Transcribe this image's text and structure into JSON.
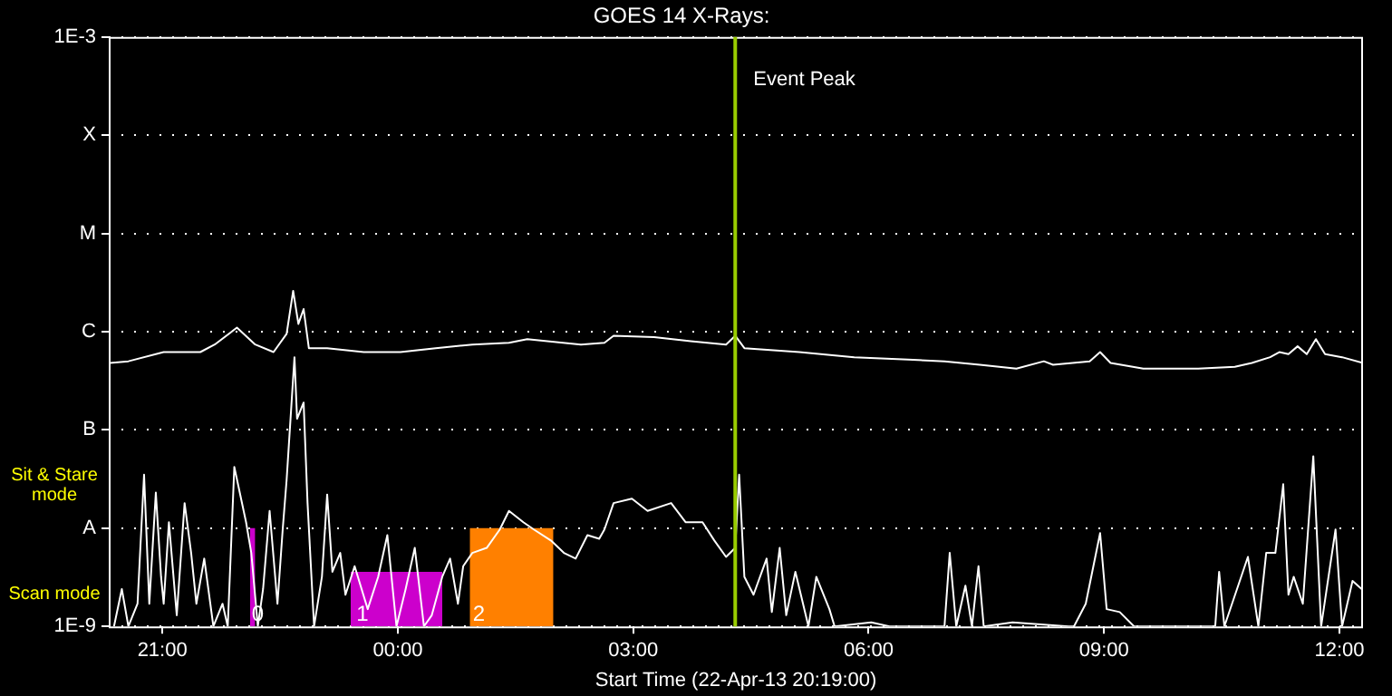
{
  "chart_data": {
    "type": "line",
    "title": "GOES 14 X-Rays:",
    "xlabel": "Start Time (22-Apr-13 20:19:00)",
    "xlim": [
      "--04-22T20:19",
      "--04-23T12:18"
    ],
    "xticks": [
      {
        "value": "--04-22T21:00",
        "label": "21:00"
      },
      {
        "value": "--04-23T00:00",
        "label": "00:00"
      },
      {
        "value": "--04-23T03:00",
        "label": "03:00"
      },
      {
        "value": "--04-23T06:00",
        "label": "06:00"
      },
      {
        "value": "--04-23T09:00",
        "label": "09:00"
      },
      {
        "value": "--04-23T12:00",
        "label": "12:00"
      }
    ],
    "log": "y",
    "ylim": [
      1e-09,
      0.001
    ],
    "yticks": [
      {
        "value": 1e-09,
        "label": "1E-9"
      },
      {
        "value": 1e-08,
        "label": "A"
      },
      {
        "value": 1e-07,
        "label": "B"
      },
      {
        "value": 1e-06,
        "label": "C"
      },
      {
        "value": 1e-05,
        "label": "M"
      },
      {
        "value": 0.0001,
        "label": "X"
      },
      {
        "value": 0.001,
        "label": "1E-3"
      }
    ],
    "grid": "y",
    "legend": false,
    "marker": "none",
    "line_style": "solid",
    "series": [
      {
        "color": "#ffffff",
        "x": [
          "--04-22T20:20",
          "--04-22T20:34",
          "--04-22T21:01",
          "--04-22T21:29",
          "--04-22T21:40",
          "--04-22T21:57",
          "--04-22T22:11",
          "--04-22T22:25",
          "--04-22T22:35",
          "--04-22T22:40",
          "--04-22T22:44",
          "--04-22T22:48",
          "--04-22T22:52",
          "--04-22T23:06",
          "--04-22T23:34",
          "--04-23T00:02",
          "--04-23T00:29",
          "--04-23T00:57",
          "--04-23T01:25",
          "--04-23T01:39",
          "--04-23T02:20",
          "--04-23T02:38",
          "--04-23T02:45",
          "--04-23T03:16",
          "--04-23T03:44",
          "--04-23T04:11",
          "--04-23T04:18",
          "--04-23T04:25",
          "--04-23T05:07",
          "--04-23T05:49",
          "--04-23T06:30",
          "--04-23T06:58",
          "--04-23T07:25",
          "--04-23T07:53",
          "--04-23T08:14",
          "--04-23T08:21",
          "--04-23T08:49",
          "--04-23T08:57",
          "--04-23T09:05",
          "--04-23T09:30",
          "--04-23T10:12",
          "--04-23T10:40",
          "--04-23T10:53",
          "--04-23T11:07",
          "--04-23T11:14",
          "--04-23T11:21",
          "--04-23T11:28",
          "--04-23T11:35",
          "--04-23T11:42",
          "--04-23T11:49",
          "--04-23T12:02",
          "--04-23T12:18"
        ],
        "values": [
          4.8e-07,
          5e-07,
          6.2e-07,
          6.2e-07,
          7.4e-07,
          1.1e-06,
          7.4e-07,
          6.2e-07,
          9.5e-07,
          2.6e-06,
          1.2e-06,
          1.7e-06,
          6.8e-07,
          6.8e-07,
          6.2e-07,
          6.2e-07,
          6.8e-07,
          7.4e-07,
          7.7e-07,
          8.4e-07,
          7.4e-07,
          7.7e-07,
          9.1e-07,
          8.8e-07,
          8e-07,
          7.4e-07,
          9.1e-07,
          6.8e-07,
          6.2e-07,
          5.5e-07,
          5.2e-07,
          5e-07,
          4.6e-07,
          4.2e-07,
          5e-07,
          4.6e-07,
          5e-07,
          6.2e-07,
          4.8e-07,
          4.2e-07,
          4.2e-07,
          4.4e-07,
          4.8e-07,
          5.5e-07,
          6.2e-07,
          5.9e-07,
          7.1e-07,
          5.9e-07,
          8.4e-07,
          5.9e-07,
          5.5e-07,
          4.8e-07
        ]
      },
      {
        "color": "#ffffff",
        "x": [
          "--04-22T20:23",
          "--04-22T20:29",
          "--04-22T20:34",
          "--04-22T20:41",
          "--04-22T20:46",
          "--04-22T20:50",
          "--04-22T20:55",
          "--04-22T20:59",
          "--04-22T21:01",
          "--04-22T21:05",
          "--04-22T21:11",
          "--04-22T21:17",
          "--04-22T21:22",
          "--04-22T21:26",
          "--04-22T21:32",
          "--04-22T21:39",
          "--04-22T21:46",
          "--04-22T21:50",
          "--04-22T21:55",
          "--04-22T22:04",
          "--04-22T22:08",
          "--04-22T22:13",
          "--04-22T22:17",
          "--04-22T22:22",
          "--04-22T22:28",
          "--04-22T22:32",
          "--04-22T22:35",
          "--04-22T22:41",
          "--04-22T22:43",
          "--04-22T22:48",
          "--04-22T22:51",
          "--04-22T22:56",
          "--04-22T23:02",
          "--04-22T23:06",
          "--04-22T23:10",
          "--04-22T23:16",
          "--04-22T23:20",
          "--04-22T23:27",
          "--04-22T23:37",
          "--04-22T23:45",
          "--04-22T23:52",
          "--04-22T23:59",
          "--04-23T00:06",
          "--04-23T00:13",
          "--04-23T00:20",
          "--04-23T00:26",
          "--04-23T00:34",
          "--04-23T00:40",
          "--04-23T00:46",
          "--04-23T00:50",
          "--04-23T00:57",
          "--04-23T01:08",
          "--04-23T01:18",
          "--04-23T01:25",
          "--04-23T01:36",
          "--04-23T01:44",
          "--04-23T01:57",
          "--04-23T02:07",
          "--04-23T02:16",
          "--04-23T02:25",
          "--04-23T02:34",
          "--04-23T02:38",
          "--04-23T02:45",
          "--04-23T02:59",
          "--04-23T03:11",
          "--04-23T03:29",
          "--04-23T03:40",
          "--04-23T03:53",
          "--04-23T04:02",
          "--04-23T04:11",
          "--04-23T04:18",
          "--04-23T04:21",
          "--04-23T04:25",
          "--04-23T04:32",
          "--04-23T04:42",
          "--04-23T04:46",
          "--04-23T04:52",
          "--04-23T04:57",
          "--04-23T05:04",
          "--04-23T05:14",
          "--04-23T05:20",
          "--04-23T05:30",
          "--04-23T05:34",
          "--04-23T06:02",
          "--04-23T06:16",
          "--04-23T06:58",
          "--04-23T07:02",
          "--04-23T07:07",
          "--04-23T07:14",
          "--04-23T07:19",
          "--04-23T07:24",
          "--04-23T07:28",
          "--04-23T07:50",
          "--04-23T08:33",
          "--04-23T08:37",
          "--04-23T08:46",
          "--04-23T08:57",
          "--04-23T09:02",
          "--04-23T09:12",
          "--04-23T09:23",
          "--04-23T10:25",
          "--04-23T10:28",
          "--04-23T10:32",
          "--04-23T10:50",
          "--04-23T10:58",
          "--04-23T11:04",
          "--04-23T11:11",
          "--04-23T11:17",
          "--04-23T11:21",
          "--04-23T11:25",
          "--04-23T11:32",
          "--04-23T11:40",
          "--04-23T11:46",
          "--04-23T11:57",
          "--04-23T12:02",
          "--04-23T12:10",
          "--04-23T12:17"
        ],
        "values": [
          1e-09,
          2.4e-09,
          1e-09,
          1.7e-09,
          3.5e-08,
          1.7e-09,
          2.3e-08,
          3.2e-09,
          1.7e-09,
          1.15e-08,
          1.3e-09,
          1.8e-08,
          5.6e-09,
          1.7e-09,
          4.9e-09,
          1e-09,
          1.7e-09,
          1e-09,
          4.2e-08,
          1.15e-08,
          5.6e-09,
          1e-09,
          2.4e-09,
          1.5e-08,
          1.7e-09,
          9.7e-09,
          3.1e-08,
          5.5e-07,
          1.3e-07,
          1.9e-07,
          1.8e-08,
          1e-09,
          3.2e-09,
          2.2e-08,
          3.6e-09,
          5.6e-09,
          2.1e-09,
          4.1e-09,
          1.5e-09,
          3.2e-09,
          8.5e-09,
          1e-09,
          2.4e-09,
          6.3e-09,
          1e-09,
          1.3e-09,
          3.2e-09,
          4.9e-09,
          1.7e-09,
          4.1e-09,
          5.6e-09,
          6.3e-09,
          9.7e-09,
          1.5e-08,
          1.15e-08,
          9.7e-09,
          7.5e-09,
          5.6e-09,
          4.9e-09,
          8.5e-09,
          7.8e-09,
          9.7e-09,
          1.8e-08,
          2e-08,
          1.5e-08,
          1.8e-08,
          1.15e-08,
          1.15e-08,
          7.5e-09,
          5.1e-09,
          6.3e-09,
          3.5e-08,
          3.2e-09,
          2.1e-09,
          4.9e-09,
          1.4e-09,
          6.3e-09,
          1.3e-09,
          3.6e-09,
          1e-09,
          3.2e-09,
          1.5e-09,
          1e-09,
          1.1e-09,
          1e-09,
          1e-09,
          5.6e-09,
          1e-09,
          2.6e-09,
          1e-09,
          4.1e-09,
          1e-09,
          1.1e-09,
          1e-09,
          1e-09,
          1.7e-09,
          8.9e-09,
          1.5e-09,
          1.4e-09,
          1e-09,
          1e-09,
          3.6e-09,
          1e-09,
          5.1e-09,
          1e-09,
          5.6e-09,
          5.6e-09,
          2.8e-08,
          2.1e-09,
          3.2e-09,
          1.7e-09,
          5.4e-08,
          1e-09,
          9.7e-09,
          1e-09,
          2.9e-09,
          2.4e-09
        ]
      },
      {
        "type": "area",
        "color": "#cc00cc",
        "x": [
          "--04-22T22:07",
          "--04-22T22:11"
        ],
        "values": [
          1e-08,
          1e-08
        ]
      },
      {
        "type": "area",
        "color": "#cc00cc",
        "x": [
          "--04-22T23:24",
          "--04-23T00:34"
        ],
        "values": [
          3.6e-09,
          3.6e-09
        ]
      },
      {
        "type": "area",
        "color": "#ff8000",
        "x": [
          "--04-23T00:55",
          "--04-23T01:59"
        ],
        "values": [
          1e-08,
          1e-08
        ]
      }
    ],
    "ref_lines": [
      {
        "axis": "x",
        "value": "--04-23T04:18",
        "label": "Event Peak",
        "color": "#99cc00"
      }
    ],
    "annotations": [
      "Sit & Stare mode",
      "Scan mode",
      {
        "text": "0",
        "x": "--04-22T22:07",
        "y": 1.3e-09
      },
      {
        "text": "1",
        "x": "--04-22T23:27",
        "y": 1.3e-09
      },
      {
        "text": "2",
        "x": "--04-23T00:56",
        "y": 1.3e-09
      }
    ]
  }
}
